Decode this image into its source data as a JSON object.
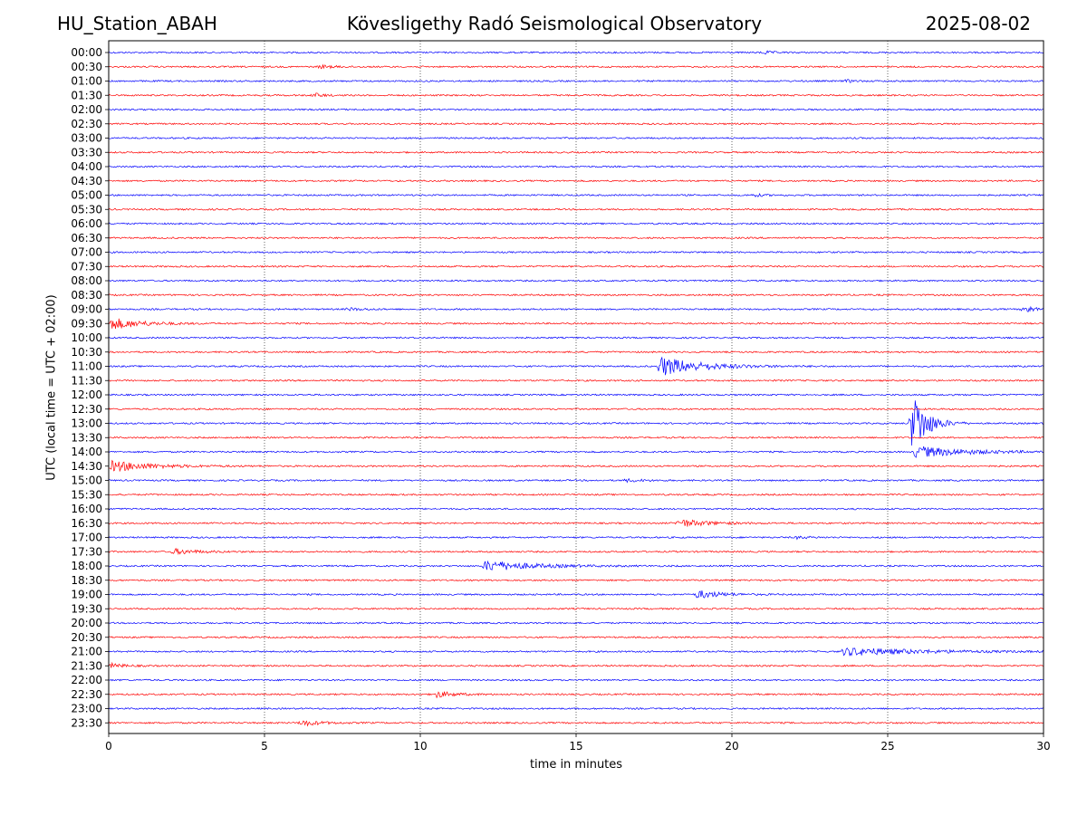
{
  "header": {
    "station": "HU_Station_ABAH",
    "observatory": "Kövesligethy Radó Seismological Observatory",
    "date": "2025-08-02"
  },
  "chart_data": {
    "type": "line",
    "xlabel": "time in minutes",
    "ylabel": "UTC (local time = UTC + 02:00)",
    "xlim": [
      0,
      30
    ],
    "x_ticks": [
      0,
      5,
      10,
      15,
      20,
      25,
      30
    ],
    "grid": "vertical dotted lines at 5-minute intervals",
    "row_labels": [
      "00:00",
      "00:30",
      "01:00",
      "01:30",
      "02:00",
      "02:30",
      "03:00",
      "03:30",
      "04:00",
      "04:30",
      "05:00",
      "05:30",
      "06:00",
      "06:30",
      "07:00",
      "07:30",
      "08:00",
      "08:30",
      "09:00",
      "09:30",
      "10:00",
      "10:30",
      "11:00",
      "11:30",
      "12:00",
      "12:30",
      "13:00",
      "13:30",
      "14:00",
      "14:30",
      "15:00",
      "15:30",
      "16:00",
      "16:30",
      "17:00",
      "17:30",
      "18:00",
      "18:30",
      "19:00",
      "19:30",
      "20:00",
      "20:30",
      "21:00",
      "21:30",
      "22:00",
      "22:30",
      "23:00",
      "23:30"
    ],
    "trace_colors": [
      "#0000ff",
      "#ff0000"
    ],
    "events": [
      {
        "row": "00:00",
        "start_min": 20.9,
        "amplitude": 0.35,
        "duration_min": 0.8
      },
      {
        "row": "00:30",
        "start_min": 6.7,
        "amplitude": 0.35,
        "duration_min": 1.2
      },
      {
        "row": "01:00",
        "start_min": 23.6,
        "amplitude": 0.3,
        "duration_min": 0.6
      },
      {
        "row": "01:30",
        "start_min": 6.5,
        "amplitude": 0.45,
        "duration_min": 0.8
      },
      {
        "row": "05:00",
        "start_min": 20.6,
        "amplitude": 0.3,
        "duration_min": 0.9
      },
      {
        "row": "09:00",
        "start_min": 7.6,
        "amplitude": 0.3,
        "duration_min": 1.2
      },
      {
        "row": "09:00",
        "start_min": 29.3,
        "amplitude": 1.0,
        "duration_min": 0.7
      },
      {
        "row": "09:30",
        "start_min": 0.0,
        "amplitude": 1.3,
        "duration_min": 2.5
      },
      {
        "row": "11:00",
        "start_min": 17.6,
        "amplitude": 2.2,
        "duration_min": 3.5
      },
      {
        "row": "13:00",
        "start_min": 25.7,
        "amplitude": 7.5,
        "duration_min": 1.2
      },
      {
        "row": "14:00",
        "start_min": 25.8,
        "amplitude": 1.3,
        "duration_min": 4.2
      },
      {
        "row": "14:30",
        "start_min": 0.0,
        "amplitude": 1.2,
        "duration_min": 3.5
      },
      {
        "row": "15:00",
        "start_min": 16.5,
        "amplitude": 0.3,
        "duration_min": 1.5
      },
      {
        "row": "16:30",
        "start_min": 18.2,
        "amplitude": 0.9,
        "duration_min": 2.5
      },
      {
        "row": "17:00",
        "start_min": 22.0,
        "amplitude": 0.3,
        "duration_min": 1.0
      },
      {
        "row": "17:30",
        "start_min": 2.0,
        "amplitude": 0.6,
        "duration_min": 2.0
      },
      {
        "row": "18:00",
        "start_min": 12.0,
        "amplitude": 1.2,
        "duration_min": 4.0
      },
      {
        "row": "19:00",
        "start_min": 18.8,
        "amplitude": 0.9,
        "duration_min": 2.0
      },
      {
        "row": "21:00",
        "start_min": 23.5,
        "amplitude": 0.9,
        "duration_min": 6.5
      },
      {
        "row": "21:30",
        "start_min": 0.0,
        "amplitude": 0.5,
        "duration_min": 1.2
      },
      {
        "row": "22:30",
        "start_min": 10.4,
        "amplitude": 0.7,
        "duration_min": 1.6
      },
      {
        "row": "23:30",
        "start_min": 6.1,
        "amplitude": 0.7,
        "duration_min": 1.5
      }
    ]
  }
}
